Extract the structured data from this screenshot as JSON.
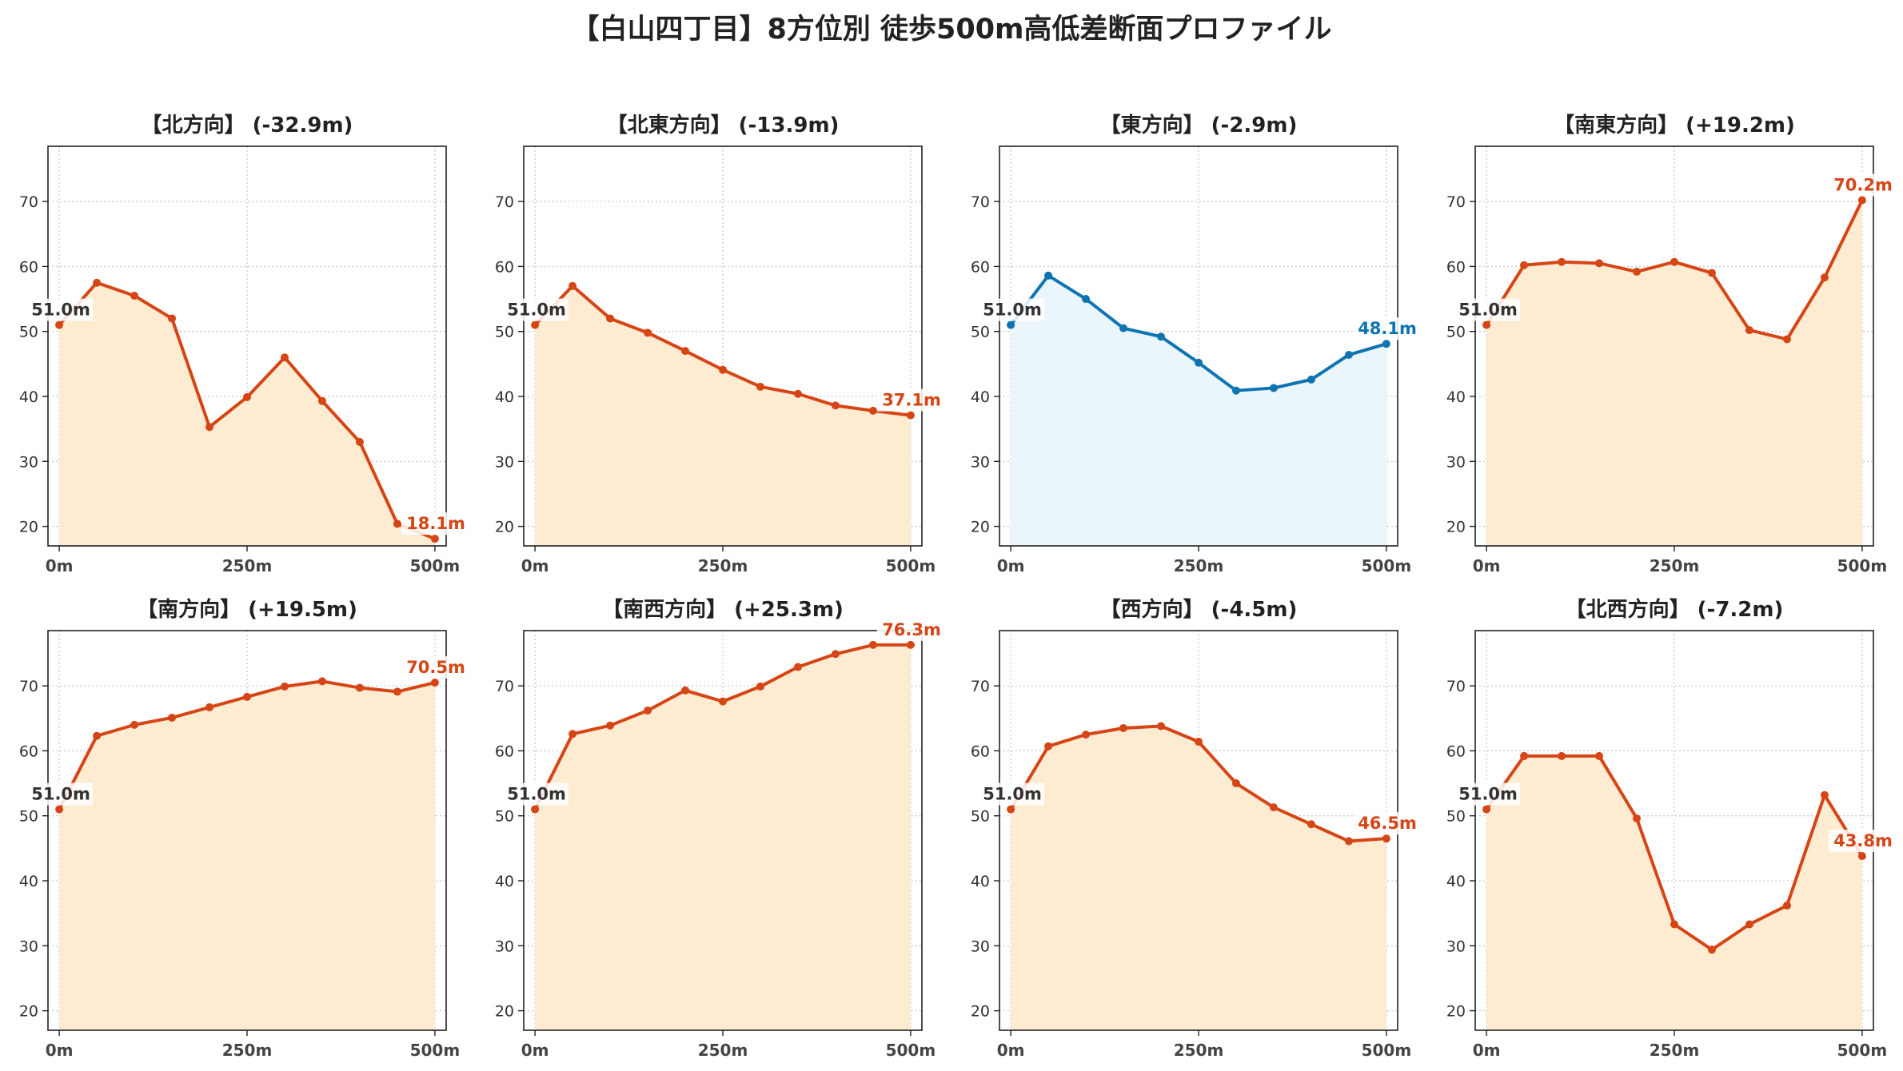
{
  "title": "【白山四丁目】8方位別 徒歩500m高低差断面プロファイル",
  "colors": {
    "loss_line": "#d64515",
    "loss_fill": "#fdebd2",
    "gain_line": "#0e74b3",
    "gain_fill": "#eaf6fc",
    "start_label": "#333333",
    "grid": "#cccccc",
    "axis": "#222222"
  },
  "chart_data": [
    {
      "type": "area",
      "title": "【北方向】 (-32.9m)",
      "x": [
        0,
        50,
        100,
        150,
        200,
        250,
        300,
        350,
        400,
        450,
        500
      ],
      "values": [
        51.0,
        57.5,
        55.5,
        52.0,
        35.3,
        39.9,
        46.0,
        39.3,
        33.0,
        20.4,
        18.1
      ],
      "xticks": [
        "0m",
        "250m",
        "500m"
      ],
      "yticks": [
        "20",
        "30",
        "40",
        "50",
        "60",
        "70"
      ],
      "ylim": [
        17,
        78.5
      ],
      "xlim": [
        -15,
        515
      ],
      "start_label": "51.0m",
      "end_label": "18.1m",
      "style": "loss",
      "grid": true
    },
    {
      "type": "area",
      "title": "【北東方向】 (-13.9m)",
      "x": [
        0,
        50,
        100,
        150,
        200,
        250,
        300,
        350,
        400,
        450,
        500
      ],
      "values": [
        51.0,
        57.0,
        52.0,
        49.8,
        47.0,
        44.1,
        41.5,
        40.4,
        38.6,
        37.8,
        37.1
      ],
      "xticks": [
        "0m",
        "250m",
        "500m"
      ],
      "yticks": [
        "20",
        "30",
        "40",
        "50",
        "60",
        "70"
      ],
      "ylim": [
        17,
        78.5
      ],
      "xlim": [
        -15,
        515
      ],
      "start_label": "51.0m",
      "end_label": "37.1m",
      "style": "loss",
      "grid": true
    },
    {
      "type": "area",
      "title": "【東方向】 (-2.9m)",
      "x": [
        0,
        50,
        100,
        150,
        200,
        250,
        300,
        350,
        400,
        450,
        500
      ],
      "values": [
        51.0,
        58.6,
        55.0,
        50.5,
        49.2,
        45.2,
        40.9,
        41.3,
        42.6,
        46.4,
        48.1
      ],
      "xticks": [
        "0m",
        "250m",
        "500m"
      ],
      "yticks": [
        "20",
        "30",
        "40",
        "50",
        "60",
        "70"
      ],
      "ylim": [
        17,
        78.5
      ],
      "xlim": [
        -15,
        515
      ],
      "start_label": "51.0m",
      "end_label": "48.1m",
      "style": "gain",
      "grid": true
    },
    {
      "type": "area",
      "title": "【南東方向】 (+19.2m)",
      "x": [
        0,
        50,
        100,
        150,
        200,
        250,
        300,
        350,
        400,
        450,
        500
      ],
      "values": [
        51.0,
        60.2,
        60.7,
        60.5,
        59.2,
        60.7,
        59.0,
        50.2,
        48.8,
        58.3,
        70.2
      ],
      "xticks": [
        "0m",
        "250m",
        "500m"
      ],
      "yticks": [
        "20",
        "30",
        "40",
        "50",
        "60",
        "70"
      ],
      "ylim": [
        17,
        78.5
      ],
      "xlim": [
        -15,
        515
      ],
      "start_label": "51.0m",
      "end_label": "70.2m",
      "style": "loss",
      "grid": true
    },
    {
      "type": "area",
      "title": "【南方向】 (+19.5m)",
      "x": [
        0,
        50,
        100,
        150,
        200,
        250,
        300,
        350,
        400,
        450,
        500
      ],
      "values": [
        51.0,
        62.3,
        64.0,
        65.1,
        66.7,
        68.3,
        69.9,
        70.7,
        69.7,
        69.1,
        70.5
      ],
      "xticks": [
        "0m",
        "250m",
        "500m"
      ],
      "yticks": [
        "20",
        "30",
        "40",
        "50",
        "60",
        "70"
      ],
      "ylim": [
        17,
        78.5
      ],
      "xlim": [
        -15,
        515
      ],
      "start_label": "51.0m",
      "end_label": "70.5m",
      "style": "loss",
      "grid": true
    },
    {
      "type": "area",
      "title": "【南西方向】 (+25.3m)",
      "x": [
        0,
        50,
        100,
        150,
        200,
        250,
        300,
        350,
        400,
        450,
        500
      ],
      "values": [
        51.0,
        62.6,
        63.9,
        66.2,
        69.3,
        67.6,
        69.9,
        72.9,
        74.9,
        76.3,
        76.3
      ],
      "xticks": [
        "0m",
        "250m",
        "500m"
      ],
      "yticks": [
        "20",
        "30",
        "40",
        "50",
        "60",
        "70"
      ],
      "ylim": [
        17,
        78.5
      ],
      "xlim": [
        -15,
        515
      ],
      "start_label": "51.0m",
      "end_label": "76.3m",
      "style": "loss",
      "grid": true
    },
    {
      "type": "area",
      "title": "【西方向】 (-4.5m)",
      "x": [
        0,
        50,
        100,
        150,
        200,
        250,
        300,
        350,
        400,
        450,
        500
      ],
      "values": [
        51.0,
        60.7,
        62.5,
        63.5,
        63.8,
        61.4,
        55.0,
        51.3,
        48.7,
        46.1,
        46.5
      ],
      "xticks": [
        "0m",
        "250m",
        "500m"
      ],
      "yticks": [
        "20",
        "30",
        "40",
        "50",
        "60",
        "70"
      ],
      "ylim": [
        17,
        78.5
      ],
      "xlim": [
        -15,
        515
      ],
      "start_label": "51.0m",
      "end_label": "46.5m",
      "style": "loss",
      "grid": true
    },
    {
      "type": "area",
      "title": "【北西方向】 (-7.2m)",
      "x": [
        0,
        50,
        100,
        150,
        200,
        250,
        300,
        350,
        400,
        450,
        500
      ],
      "values": [
        51.0,
        59.2,
        59.2,
        59.2,
        49.6,
        33.3,
        29.4,
        33.3,
        36.2,
        53.2,
        43.8
      ],
      "xticks": [
        "0m",
        "250m",
        "500m"
      ],
      "yticks": [
        "20",
        "30",
        "40",
        "50",
        "60",
        "70"
      ],
      "ylim": [
        17,
        78.5
      ],
      "xlim": [
        -15,
        515
      ],
      "start_label": "51.0m",
      "end_label": "43.8m",
      "style": "loss",
      "grid": true
    }
  ]
}
